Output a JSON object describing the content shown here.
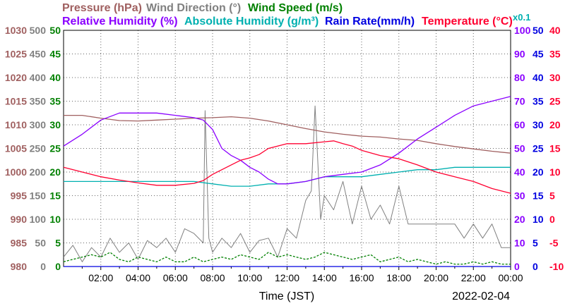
{
  "chart_data": {
    "type": "line",
    "date_label": "2022-02-04",
    "xlabel": "Time (JST)",
    "x_ticks": [
      "02:00",
      "04:00",
      "06:00",
      "08:00",
      "10:00",
      "12:00",
      "14:00",
      "16:00",
      "18:00",
      "20:00",
      "22:00",
      "00:00"
    ],
    "grid": true,
    "legend_rows": [
      [
        {
          "text": "Pressure (hPa)",
          "color": "#a06060"
        },
        {
          "text": "Wind Direction (°)",
          "color": "#808080"
        },
        {
          "text": "Wind Speed (m/s)",
          "color": "#008000"
        }
      ],
      [
        {
          "text": "Relative Humidity (%)",
          "color": "#8a00ff"
        },
        {
          "text": "Absolute Humidity (g/m³)",
          "color": "#00b0b0"
        },
        {
          "text": "Rain Rate(mm/h)",
          "color": "#0000e0"
        },
        {
          "text": "Temperature (°C)",
          "color": "#ff0030"
        }
      ]
    ],
    "scale_note": {
      "text": "x0.1",
      "color": "#00b0b0"
    },
    "axes": {
      "pressure": {
        "range": [
          980,
          1030
        ],
        "ticks": [
          "1030",
          "1025",
          "1020",
          "1015",
          "1010",
          "1005",
          "1000",
          "995",
          "990",
          "985",
          "980"
        ],
        "color": "#a06060"
      },
      "wind_direction": {
        "range": [
          0,
          500
        ],
        "ticks": [
          "500",
          "450",
          "400",
          "350",
          "300",
          "250",
          "200",
          "150",
          "100",
          "50",
          "0"
        ],
        "color": "#808080"
      },
      "wind_speed": {
        "range": [
          0,
          50
        ],
        "ticks": [
          "50",
          "45",
          "40",
          "35",
          "30",
          "25",
          "20",
          "15",
          "10",
          "5",
          "0"
        ],
        "color": "#008000"
      },
      "humidity": {
        "range": [
          0,
          100
        ],
        "ticks": [
          "100",
          "90",
          "80",
          "70",
          "60",
          "50",
          "40",
          "30",
          "20",
          "10",
          "0"
        ],
        "color": "#8a00ff"
      },
      "rain_rate": {
        "range": [
          0,
          50
        ],
        "ticks": [
          "50",
          "45",
          "40",
          "35",
          "30",
          "25",
          "20",
          "15",
          "10",
          "5",
          "0"
        ],
        "color": "#0000e0"
      },
      "temperature": {
        "range": [
          -10,
          40
        ],
        "ticks": [
          "40",
          "35",
          "30",
          "25",
          "20",
          "15",
          "10",
          "5",
          "0",
          "-5",
          "-10"
        ],
        "color": "#ff0030"
      }
    },
    "series": [
      {
        "key": "pressure",
        "axis": "pressure",
        "color": "#a06060",
        "x": [
          0,
          1,
          2,
          3,
          4,
          5,
          6,
          7,
          8,
          9,
          10,
          11,
          12,
          13,
          14,
          15,
          16,
          17,
          18,
          19,
          20,
          21,
          22,
          23,
          24
        ],
        "y": [
          1012.0,
          1012.0,
          1011.4,
          1010.9,
          1010.8,
          1011.0,
          1011.2,
          1011.4,
          1011.5,
          1011.7,
          1011.4,
          1010.8,
          1010.0,
          1009.2,
          1008.5,
          1008.0,
          1007.6,
          1007.4,
          1007.0,
          1006.7,
          1006.0,
          1005.4,
          1004.9,
          1004.4,
          1004.0
        ]
      },
      {
        "key": "temperature",
        "axis": "temperature",
        "color": "#ff0030",
        "x": [
          0,
          1,
          2,
          3,
          4,
          5,
          6,
          7,
          7.5,
          8,
          9,
          9.5,
          10,
          10.5,
          11,
          12,
          13,
          14,
          14.5,
          15,
          15.5,
          16,
          17,
          18,
          19,
          20,
          21,
          22,
          23,
          24
        ],
        "y": [
          11.0,
          10.0,
          9.0,
          8.3,
          7.7,
          7.2,
          7.2,
          7.6,
          8.2,
          9.5,
          11.5,
          12.5,
          13.0,
          13.7,
          15.0,
          16.0,
          16.0,
          16.4,
          16.6,
          16.0,
          15.5,
          14.6,
          13.5,
          12.8,
          11.5,
          10.0,
          9.0,
          8.0,
          6.5,
          5.5
        ]
      },
      {
        "key": "relative_humidity",
        "axis": "humidity",
        "color": "#8a00ff",
        "x": [
          0,
          1,
          2,
          3,
          4,
          5,
          6,
          7,
          7.5,
          8,
          8.5,
          9,
          9.5,
          10,
          10.5,
          11,
          11.5,
          12,
          13,
          14,
          15,
          16,
          17,
          18,
          19,
          20,
          21,
          22,
          23,
          24
        ],
        "y": [
          51,
          56,
          62,
          65,
          65,
          65,
          64,
          63,
          62,
          58,
          50,
          47,
          45,
          42,
          40,
          37,
          35,
          35,
          36,
          38,
          39,
          40,
          43,
          48,
          54,
          59,
          64,
          68,
          70,
          72
        ]
      },
      {
        "key": "absolute_humidity",
        "axis": "humidity",
        "color": "#00b0b0",
        "x": [
          0,
          1,
          2,
          3,
          4,
          5,
          6,
          7,
          8,
          9,
          10,
          11,
          12,
          13,
          14,
          15,
          16,
          17,
          18,
          19,
          20,
          21,
          22,
          23,
          24
        ],
        "y": [
          36,
          36,
          36,
          36,
          36,
          36,
          36,
          36,
          35,
          34,
          34,
          35,
          35,
          36,
          38,
          38,
          38,
          39,
          40,
          41,
          41,
          42,
          42,
          42,
          42
        ]
      },
      {
        "key": "wind_speed",
        "axis": "wind_speed",
        "color": "#008000",
        "x": [
          0,
          0.5,
          1,
          1.5,
          2,
          2.5,
          3,
          3.5,
          4,
          4.5,
          5,
          5.5,
          6,
          6.5,
          7,
          7.5,
          8,
          8.5,
          9,
          9.5,
          10,
          10.5,
          11,
          11.5,
          12,
          12.5,
          13,
          13.5,
          14,
          14.5,
          15,
          15.5,
          16,
          16.5,
          17,
          17.5,
          18,
          18.5,
          19,
          19.5,
          20,
          20.5,
          21,
          21.5,
          22,
          22.5,
          23,
          23.5,
          24
        ],
        "y": [
          1,
          1.5,
          2,
          2.5,
          2,
          3,
          1.5,
          1,
          2,
          1.5,
          1,
          2,
          1,
          1,
          2,
          1,
          1.5,
          2,
          1.5,
          2.5,
          2,
          1.5,
          3,
          2,
          2.5,
          2,
          1.5,
          2,
          3,
          2.5,
          2,
          1.5,
          2,
          2.5,
          1,
          1.5,
          2,
          1,
          1.5,
          1,
          0.5,
          1,
          0.5,
          0.5,
          1,
          0.5,
          1,
          0.5,
          0.5
        ]
      },
      {
        "key": "wind_direction",
        "axis": "wind_direction",
        "color": "#808080",
        "x": [
          0,
          0.5,
          1,
          1.5,
          2,
          2.5,
          3,
          3.5,
          4,
          4.5,
          5,
          5.5,
          6,
          6.5,
          7,
          7.5,
          7.6,
          7.8,
          8,
          8.5,
          9,
          9.5,
          10,
          10.5,
          11,
          11.5,
          12,
          12.5,
          13,
          13.3,
          13.5,
          13.8,
          14,
          14.5,
          15,
          15.5,
          16,
          16.5,
          17,
          17.5,
          18,
          18.5,
          19,
          19.5,
          20,
          20.5,
          21,
          21.5,
          22,
          22.5,
          23,
          23.5,
          24
        ],
        "y": [
          20,
          45,
          10,
          40,
          20,
          60,
          30,
          50,
          15,
          55,
          40,
          60,
          30,
          80,
          70,
          50,
          330,
          60,
          30,
          60,
          40,
          70,
          30,
          55,
          60,
          20,
          80,
          60,
          140,
          160,
          340,
          100,
          150,
          120,
          180,
          90,
          170,
          100,
          130,
          90,
          170,
          90,
          90,
          90,
          90,
          90,
          90,
          60,
          90,
          60,
          90,
          40,
          40
        ]
      },
      {
        "key": "rain_rate",
        "axis": "rain_rate",
        "color": "#0000e0",
        "x": [
          0,
          24
        ],
        "y": [
          0,
          0
        ]
      }
    ]
  }
}
